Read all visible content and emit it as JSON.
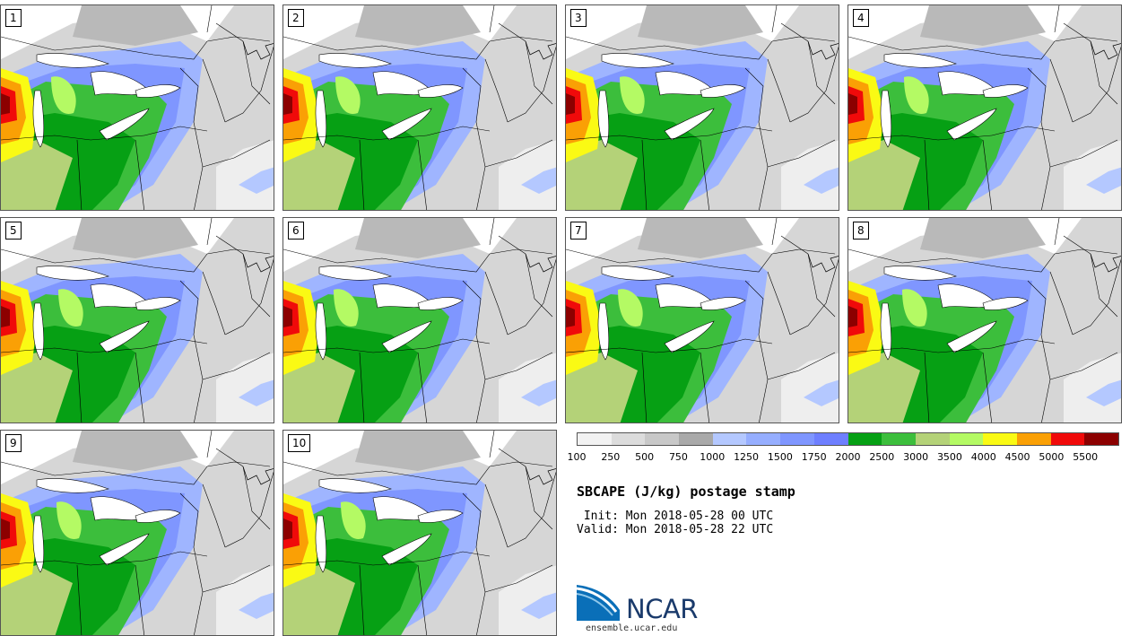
{
  "panels": [
    {
      "label": "1"
    },
    {
      "label": "2"
    },
    {
      "label": "3"
    },
    {
      "label": "4"
    },
    {
      "label": "5"
    },
    {
      "label": "6"
    },
    {
      "label": "7"
    },
    {
      "label": "8"
    },
    {
      "label": "9"
    },
    {
      "label": "10"
    }
  ],
  "legend": {
    "colors": [
      "#f2f2f2",
      "#dcdcdc",
      "#c8c8c8",
      "#a9a9a9",
      "#b4c8ff",
      "#96aeff",
      "#7f96ff",
      "#6e7fff",
      "#06a014",
      "#3cbe3c",
      "#b4d278",
      "#b4fa64",
      "#fafa14",
      "#faa005",
      "#f00a0a",
      "#8c0000"
    ],
    "ticks": [
      "100",
      "250",
      "500",
      "750",
      "1000",
      "1250",
      "1500",
      "1750",
      "2000",
      "2500",
      "3000",
      "3500",
      "4000",
      "4500",
      "5000",
      "5500"
    ]
  },
  "title": "SBCAPE (J/kg) postage stamp",
  "init_line": " Init: Mon 2018-05-28 00 UTC",
  "valid_line": "Valid: Mon 2018-05-28 22 UTC",
  "logo": {
    "name": "NCAR",
    "url": "ensemble.ucar.edu"
  }
}
